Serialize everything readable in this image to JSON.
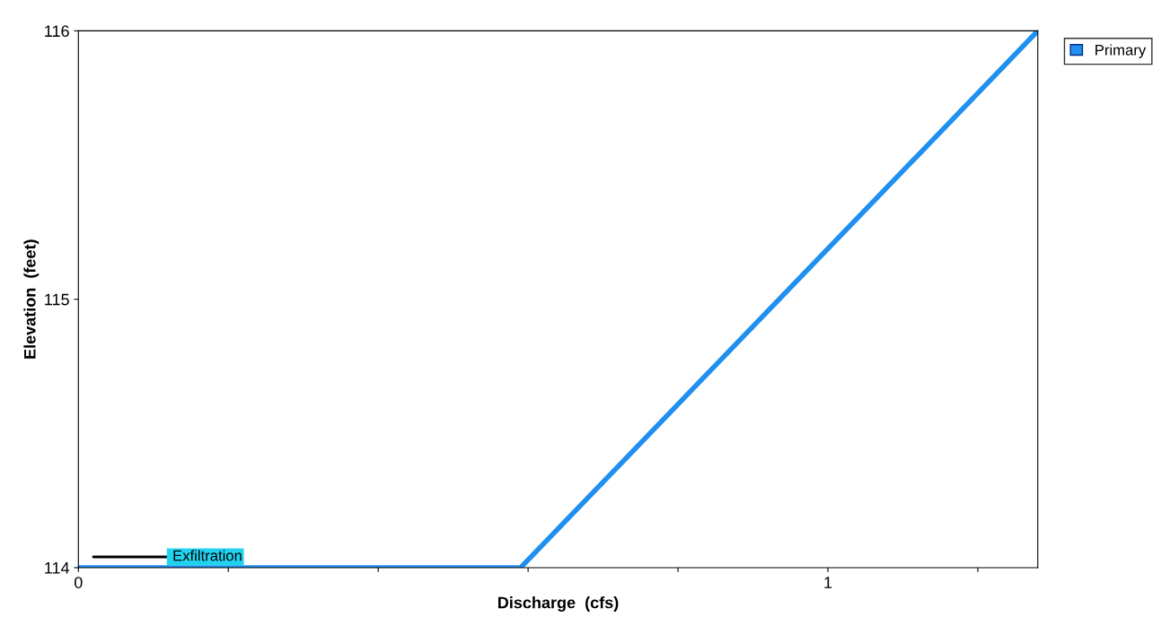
{
  "chart_data": {
    "type": "line",
    "xlabel": "Discharge  (cfs)",
    "ylabel": "Elevation  (feet)",
    "xlim": [
      0,
      1.28
    ],
    "ylim": [
      114,
      116
    ],
    "xticks": [
      0,
      {
        "value": 0.2,
        "label": null
      },
      {
        "value": 0.4,
        "label": null
      },
      {
        "value": 0.6,
        "label": null
      },
      {
        "value": 0.8,
        "label": null
      },
      1,
      {
        "value": 1.2,
        "label": null
      }
    ],
    "yticks": [
      114,
      115,
      116
    ],
    "series": [
      {
        "name": "Primary",
        "color": "#1f8ff0",
        "x": [
          0,
          0.59,
          1.28
        ],
        "values": [
          114,
          114,
          116
        ]
      },
      {
        "name": "Exfiltration",
        "color": "#000000",
        "x": [
          0.02,
          0.12
        ],
        "values": [
          114.04,
          114.04
        ]
      }
    ],
    "legend": "top right",
    "grid": false,
    "marker": "none",
    "line_style": "solid"
  }
}
